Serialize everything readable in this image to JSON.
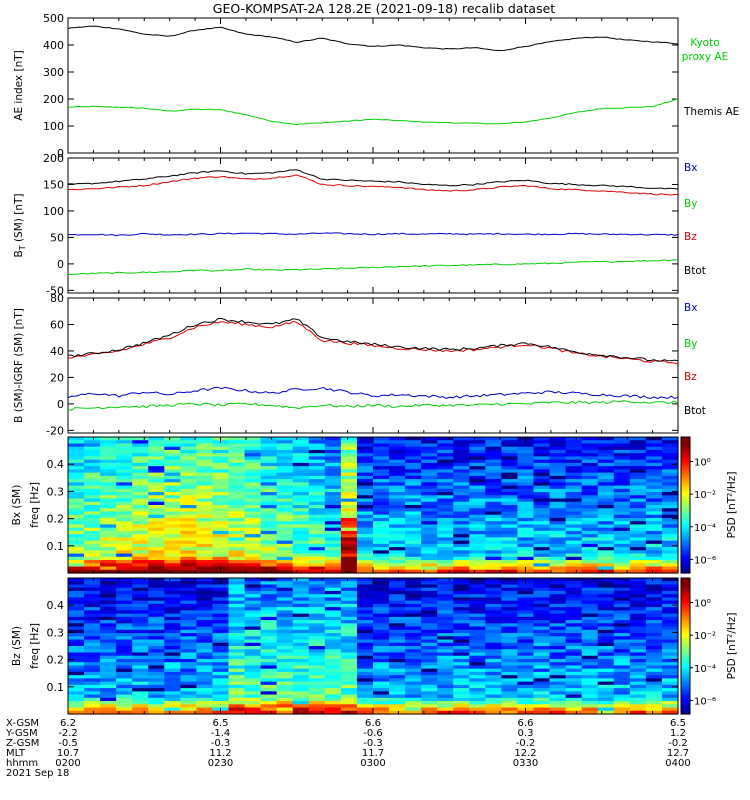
{
  "title": "GEO-KOMPSAT-2A 128.2E (2021-09-18) recalib dataset",
  "colors": {
    "black": "#000000",
    "green": "#00d000",
    "red": "#e00000",
    "blue": "#0000c8"
  },
  "chart_data": [
    {
      "type": "line",
      "ylabel": "AE index [nT]",
      "ylim": [
        0,
        500
      ],
      "yticks": [
        0,
        100,
        200,
        300,
        400,
        500
      ],
      "series": [
        {
          "name": "Kyoto proxy AE",
          "color": "#00d000",
          "x": [
            0,
            5,
            10,
            15,
            20,
            25,
            30,
            35,
            40,
            45,
            50,
            55,
            60,
            65,
            70,
            75,
            80,
            85,
            90,
            95,
            100,
            105,
            110,
            115,
            120
          ],
          "values": [
            170,
            172,
            170,
            166,
            155,
            162,
            160,
            142,
            118,
            106,
            112,
            118,
            125,
            120,
            115,
            112,
            110,
            108,
            115,
            130,
            150,
            165,
            168,
            172,
            200
          ]
        },
        {
          "name": "Themis AE",
          "color": "#000000",
          "x": [
            0,
            5,
            10,
            15,
            20,
            25,
            30,
            35,
            40,
            45,
            50,
            55,
            60,
            65,
            70,
            75,
            80,
            85,
            90,
            95,
            100,
            105,
            110,
            115,
            120
          ],
          "values": [
            462,
            470,
            460,
            440,
            432,
            455,
            465,
            440,
            430,
            410,
            425,
            405,
            395,
            400,
            390,
            385,
            390,
            378,
            395,
            412,
            425,
            430,
            418,
            412,
            405
          ]
        }
      ],
      "legend": [
        "Kyoto proxy AE",
        "Themis AE"
      ]
    },
    {
      "type": "line",
      "ylabel": "B (SM) [nT]",
      "ylabel_subscript": "T",
      "ylim": [
        -55,
        200
      ],
      "yticks": [
        -50,
        0,
        50,
        100,
        150,
        200
      ],
      "series": [
        {
          "name": "Bx",
          "color": "#0000c8",
          "values": [
            55,
            56,
            54,
            57,
            55,
            56,
            57,
            58,
            57,
            56,
            58,
            57,
            56,
            57,
            56,
            57,
            56,
            57,
            56,
            56,
            57,
            56,
            56,
            55,
            55
          ]
        },
        {
          "name": "By",
          "color": "#00d000",
          "values": [
            -20,
            -18,
            -17,
            -16,
            -15,
            -12,
            -13,
            -10,
            -12,
            -11,
            -10,
            -8,
            -7,
            -5,
            -4,
            -3,
            -2,
            -1,
            0,
            1,
            3,
            4,
            5,
            6,
            8
          ]
        },
        {
          "name": "Bz",
          "color": "#e00000",
          "values": [
            140,
            142,
            145,
            148,
            155,
            162,
            165,
            160,
            162,
            168,
            150,
            148,
            146,
            145,
            140,
            138,
            140,
            145,
            148,
            142,
            140,
            138,
            135,
            132,
            130
          ]
        },
        {
          "name": "Btot",
          "color": "#000000",
          "values": [
            150,
            152,
            156,
            160,
            166,
            172,
            176,
            170,
            172,
            178,
            160,
            158,
            156,
            155,
            150,
            148,
            150,
            155,
            158,
            152,
            150,
            148,
            146,
            143,
            141
          ]
        }
      ],
      "legend": [
        "Bx",
        "By",
        "Bz",
        "Btot"
      ]
    },
    {
      "type": "line",
      "ylabel": "B (SM)-IGRF (SM) [nT]",
      "ylim": [
        -22,
        80
      ],
      "yticks": [
        -20,
        0,
        20,
        40,
        60,
        80
      ],
      "series": [
        {
          "name": "Bx",
          "color": "#0000c8",
          "values": [
            5,
            8,
            6,
            9,
            7,
            10,
            12,
            10,
            8,
            11,
            12,
            9,
            6,
            7,
            6,
            5,
            6,
            7,
            8,
            9,
            8,
            7,
            6,
            5,
            5
          ]
        },
        {
          "name": "By",
          "color": "#00d000",
          "values": [
            -4,
            -3,
            -2,
            -2,
            -1,
            0,
            -1,
            0,
            -1,
            -3,
            -1,
            -2,
            -1,
            -2,
            -1,
            -1,
            -1,
            0,
            0,
            1,
            1,
            1,
            2,
            1,
            1
          ]
        },
        {
          "name": "Bz",
          "color": "#e00000",
          "values": [
            35,
            37,
            40,
            45,
            50,
            58,
            62,
            60,
            58,
            62,
            48,
            46,
            44,
            42,
            41,
            40,
            41,
            43,
            45,
            42,
            38,
            36,
            34,
            32,
            31
          ]
        },
        {
          "name": "Btot",
          "color": "#000000",
          "values": [
            36,
            38,
            41,
            46,
            52,
            60,
            64,
            62,
            60,
            64,
            50,
            47,
            45,
            43,
            42,
            41,
            42,
            44,
            46,
            43,
            39,
            37,
            35,
            33,
            32
          ]
        }
      ],
      "legend": [
        "Bx",
        "By",
        "Bz",
        "Btot"
      ]
    },
    {
      "type": "heatmap",
      "ylabel": "Bx (SM) freq [Hz]",
      "ylim": [
        0,
        0.5
      ],
      "yticks": [
        0.1,
        0.2,
        0.3,
        0.4
      ],
      "colorbar_label": "PSD [nT²/Hz]",
      "colorbar_ticks": [
        "10⁰",
        "10⁻²",
        "10⁻⁴",
        "10⁻⁶"
      ]
    },
    {
      "type": "heatmap",
      "ylabel": "Bz (SM) freq [Hz]",
      "ylim": [
        0,
        0.5
      ],
      "yticks": [
        0.1,
        0.2,
        0.3,
        0.4
      ],
      "colorbar_label": "PSD [nT²/Hz]",
      "colorbar_ticks": [
        "10⁰",
        "10⁻²",
        "10⁻⁴",
        "10⁻⁶"
      ]
    }
  ],
  "ephemeris": {
    "labels": [
      "X-GSM",
      "Y-GSM",
      "Z-GSM",
      "MLT",
      "hhmm",
      "2021 Sep 18"
    ],
    "columns": [
      [
        "6.2",
        "-2.2",
        "-0.5",
        "10.7",
        "0200"
      ],
      [
        "6.5",
        "-1.4",
        "-0.3",
        "11.2",
        "0230"
      ],
      [
        "6.6",
        "-0.6",
        "-0.3",
        "11.7",
        "0300"
      ],
      [
        "6.6",
        "0.3",
        "-0.2",
        "12.2",
        "0330"
      ],
      [
        "6.5",
        "1.2",
        "-0.2",
        "12.7",
        "0400"
      ]
    ]
  }
}
